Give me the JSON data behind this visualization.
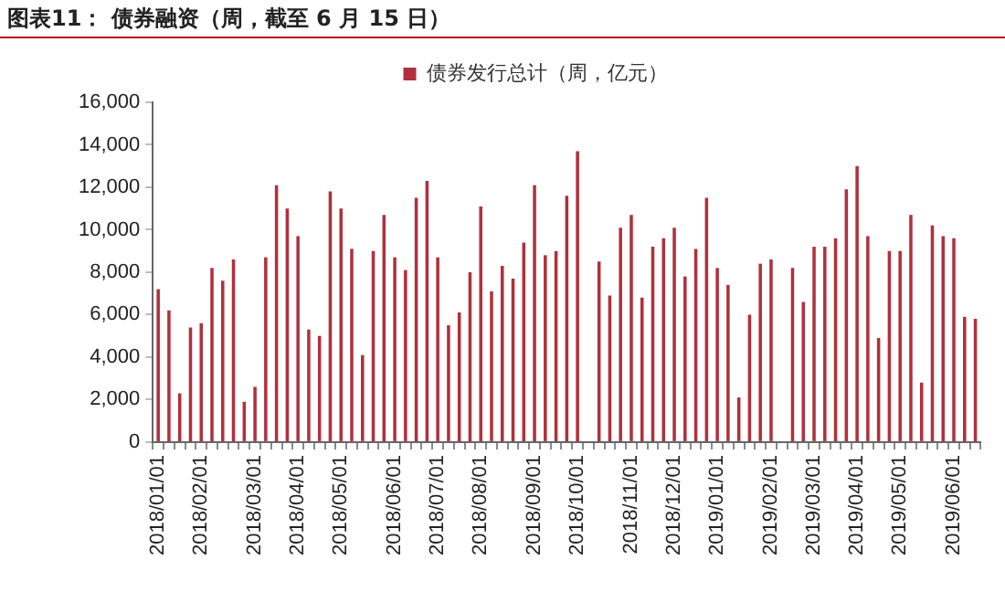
{
  "chart_data": {
    "type": "bar",
    "title": "图表11： 债券融资（周，截至 6 月 15 日）",
    "categories": [
      "2018/01/01",
      null,
      null,
      null,
      "2018/02/01",
      null,
      null,
      null,
      null,
      "2018/03/01",
      null,
      null,
      null,
      "2018/04/01",
      null,
      null,
      null,
      "2018/05/01",
      null,
      null,
      null,
      null,
      "2018/06/01",
      null,
      null,
      null,
      "2018/07/01",
      null,
      null,
      null,
      "2018/08/01",
      null,
      null,
      null,
      null,
      "2018/09/01",
      null,
      null,
      null,
      "2018/10/01",
      null,
      null,
      null,
      null,
      "2018/11/01",
      null,
      null,
      null,
      "2018/12/01",
      null,
      null,
      null,
      "2019/01/01",
      null,
      null,
      null,
      null,
      "2019/02/01",
      null,
      null,
      null,
      "2019/03/01",
      null,
      null,
      null,
      "2019/04/01",
      null,
      null,
      null,
      "2019/05/01",
      null,
      null,
      null,
      null,
      "2019/06/01",
      null,
      null
    ],
    "series": [
      {
        "name": "债券发行总计（周，亿元）",
        "color": "#b0303c",
        "values": [
          7200,
          6200,
          2300,
          5400,
          5600,
          8200,
          7600,
          8600,
          1900,
          2600,
          8700,
          12100,
          11000,
          9700,
          5300,
          5000,
          11800,
          11000,
          9100,
          4100,
          9000,
          10700,
          8700,
          8100,
          11500,
          12300,
          8700,
          5500,
          6100,
          8000,
          11100,
          7100,
          8300,
          7700,
          9400,
          12100,
          8800,
          9000,
          11600,
          13700,
          null,
          8500,
          6900,
          10100,
          10700,
          6800,
          9200,
          9600,
          10100,
          7800,
          9100,
          11500,
          8200,
          7400,
          2100,
          6000,
          8400,
          8600,
          null,
          8200,
          6600,
          9200,
          9200,
          9600,
          11900,
          13000,
          9700,
          4900,
          9000,
          9000,
          10700,
          2800,
          10200,
          9700,
          9600,
          5900,
          5800
        ]
      }
    ],
    "ylim": [
      0,
      16000
    ],
    "yticks": [
      0,
      {
        "value": 2000,
        "label": "2,000"
      },
      {
        "value": 4000,
        "label": "4,000"
      },
      {
        "value": 6000,
        "label": "6,000"
      },
      {
        "value": 8000,
        "label": "8,000"
      },
      {
        "value": 10000,
        "label": "10,000"
      },
      {
        "value": 12000,
        "label": "12,000"
      },
      {
        "value": 14000,
        "label": "14,000"
      },
      {
        "value": 16000,
        "label": "16,000"
      }
    ],
    "grid": false,
    "legend": "top"
  }
}
